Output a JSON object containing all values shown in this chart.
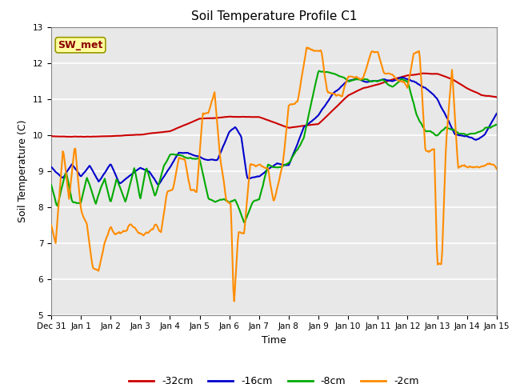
{
  "title": "Soil Temperature Profile C1",
  "xlabel": "Time",
  "ylabel": "Soil Temperature (C)",
  "ylim": [
    5.0,
    13.0
  ],
  "yticks": [
    5.0,
    6.0,
    7.0,
    8.0,
    9.0,
    10.0,
    11.0,
    12.0,
    13.0
  ],
  "annotation_text": "SW_met",
  "annotation_color": "#8B0000",
  "annotation_bg": "#FFFFA0",
  "annotation_edge": "#999900",
  "bg_color": "#E8E8E8",
  "grid_color": "#FFFFFF",
  "series": {
    "-32cm": {
      "color": "#CC0000",
      "linewidth": 1.5
    },
    "-16cm": {
      "color": "#0000CC",
      "linewidth": 1.5
    },
    "-8cm": {
      "color": "#00AA00",
      "linewidth": 1.5
    },
    "-2cm": {
      "color": "#FF8C00",
      "linewidth": 1.5
    }
  },
  "x_tick_labels": [
    "Dec 31",
    "Jan 1",
    "Jan 2",
    "Jan 3",
    "Jan 4",
    "Jan 5",
    "Jan 6",
    "Jan 7",
    "Jan 8",
    "Jan 9",
    "Jan 10",
    "Jan 11",
    "Jan 12",
    "Jan 13",
    "Jan 14",
    "Jan 15"
  ],
  "tick_fontsize": 7.5,
  "title_fontsize": 11,
  "label_fontsize": 9,
  "legend_fontsize": 9
}
